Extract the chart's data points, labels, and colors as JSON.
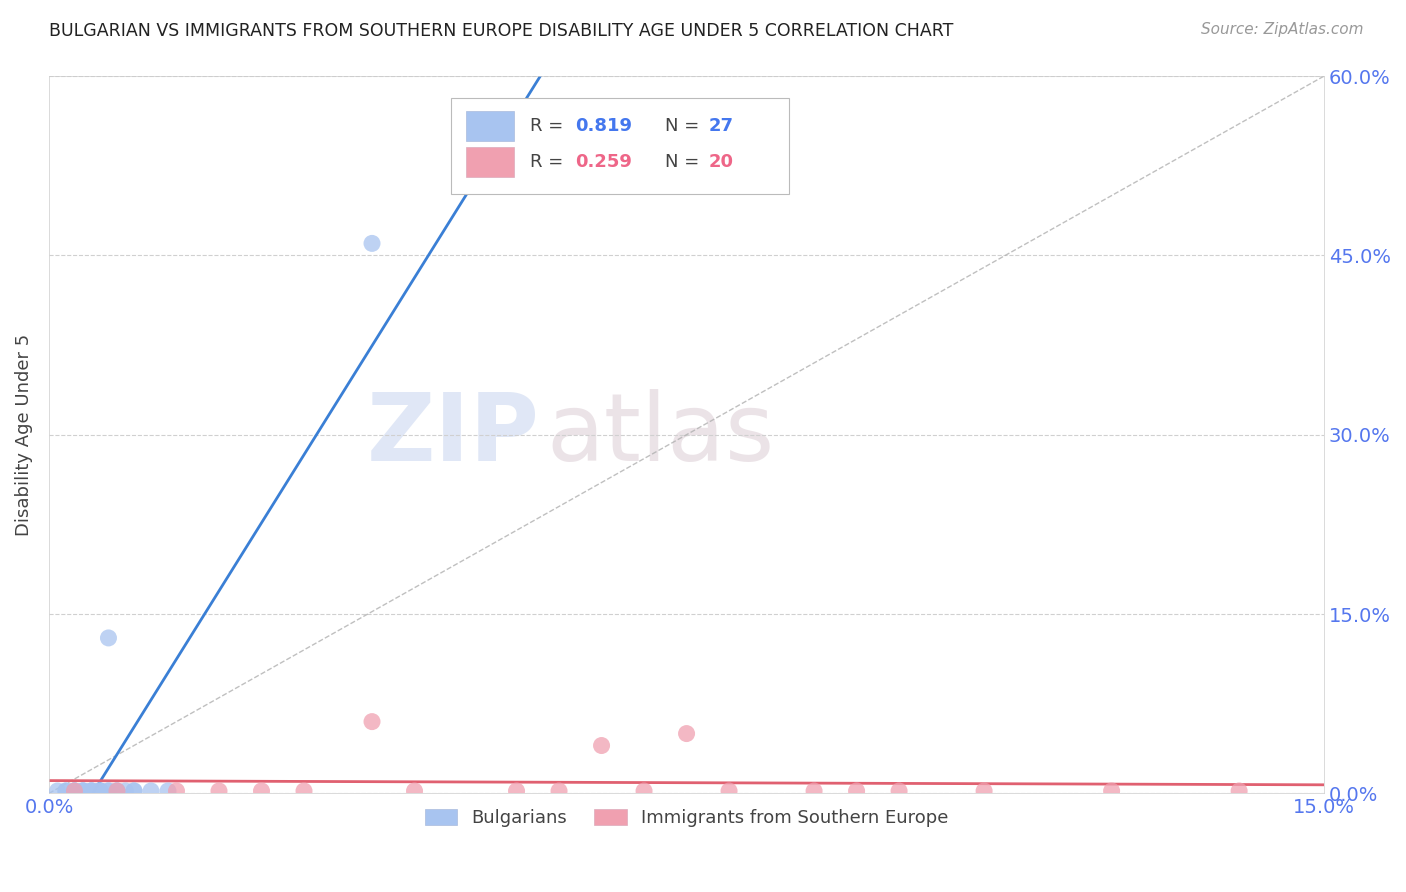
{
  "title": "BULGARIAN VS IMMIGRANTS FROM SOUTHERN EUROPE DISABILITY AGE UNDER 5 CORRELATION CHART",
  "source": "Source: ZipAtlas.com",
  "ylabel": "Disability Age Under 5",
  "xlim": [
    0.0,
    0.15
  ],
  "ylim": [
    0.0,
    0.6
  ],
  "ytick_vals": [
    0.0,
    0.15,
    0.3,
    0.45,
    0.6
  ],
  "xtick_vals": [
    0.0,
    0.15
  ],
  "grid_color": "#d0d0d0",
  "background_color": "#ffffff",
  "watermark_zip": "ZIP",
  "watermark_atlas": "atlas",
  "series": [
    {
      "name": "Bulgarians",
      "R": 0.819,
      "N": 27,
      "color": "#a8c4f0",
      "edge_color": "#a8c4f0",
      "line_color": "#3a7fd5",
      "x": [
        0.001,
        0.002,
        0.002,
        0.003,
        0.003,
        0.003,
        0.004,
        0.004,
        0.004,
        0.005,
        0.005,
        0.005,
        0.006,
        0.006,
        0.006,
        0.006,
        0.007,
        0.007,
        0.007,
        0.008,
        0.008,
        0.009,
        0.01,
        0.01,
        0.012,
        0.014,
        0.038
      ],
      "y": [
        0.002,
        0.002,
        0.002,
        0.002,
        0.002,
        0.002,
        0.002,
        0.002,
        0.002,
        0.002,
        0.002,
        0.002,
        0.002,
        0.002,
        0.002,
        0.002,
        0.002,
        0.002,
        0.13,
        0.002,
        0.002,
        0.002,
        0.002,
        0.002,
        0.002,
        0.002,
        0.46
      ]
    },
    {
      "name": "Immigrants from Southern Europe",
      "R": 0.259,
      "N": 20,
      "color": "#f0a0b0",
      "edge_color": "#f0a0b0",
      "line_color": "#e06070",
      "x": [
        0.003,
        0.008,
        0.015,
        0.02,
        0.025,
        0.03,
        0.038,
        0.043,
        0.055,
        0.06,
        0.065,
        0.07,
        0.075,
        0.08,
        0.09,
        0.095,
        0.1,
        0.11,
        0.125,
        0.14
      ],
      "y": [
        0.002,
        0.002,
        0.002,
        0.002,
        0.002,
        0.002,
        0.06,
        0.002,
        0.002,
        0.002,
        0.04,
        0.002,
        0.05,
        0.002,
        0.002,
        0.002,
        0.002,
        0.002,
        0.002,
        0.002
      ]
    }
  ],
  "diagonal_line_color": "#b0b0b0",
  "title_color": "#222222",
  "axis_label_color": "#444444",
  "tick_color": "#5577ee",
  "source_color": "#999999",
  "right_tick_color": "#5577ee"
}
